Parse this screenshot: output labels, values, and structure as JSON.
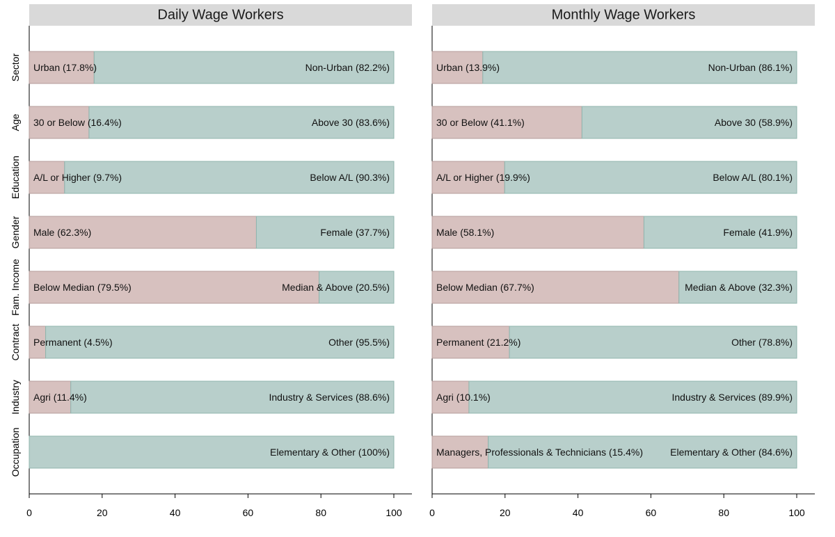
{
  "chart_data": {
    "type": "bar",
    "orientation": "horizontal",
    "stacked": true,
    "xlim": [
      0,
      100
    ],
    "xticks": [
      0,
      20,
      40,
      60,
      80,
      100
    ],
    "categories": [
      "Sector",
      "Age",
      "Education",
      "Gender",
      "Fam. Income",
      "Contract",
      "Industry",
      "Occupation"
    ],
    "colors": {
      "group_a": "#d7c1bf",
      "group_b": "#b8cfcb"
    },
    "panels": [
      {
        "title": "Daily Wage Workers",
        "rows": [
          {
            "category": "Sector",
            "a_value": 17.8,
            "a_label": "Urban (17.8%)",
            "b_value": 82.2,
            "b_label": "Non-Urban (82.2%)"
          },
          {
            "category": "Age",
            "a_value": 16.4,
            "a_label": "30 or Below (16.4%)",
            "b_value": 83.6,
            "b_label": "Above 30 (83.6%)"
          },
          {
            "category": "Education",
            "a_value": 9.7,
            "a_label": "A/L or Higher (9.7%)",
            "b_value": 90.3,
            "b_label": "Below A/L (90.3%)"
          },
          {
            "category": "Gender",
            "a_value": 62.3,
            "a_label": "Male (62.3%)",
            "b_value": 37.7,
            "b_label": "Female (37.7%)"
          },
          {
            "category": "Fam. Income",
            "a_value": 79.5,
            "a_label": "Below Median (79.5%)",
            "b_value": 20.5,
            "b_label": "Median & Above (20.5%)"
          },
          {
            "category": "Contract",
            "a_value": 4.5,
            "a_label": "Permanent (4.5%)",
            "b_value": 95.5,
            "b_label": "Other (95.5%)"
          },
          {
            "category": "Industry",
            "a_value": 11.4,
            "a_label": "Agri (11.4%)",
            "b_value": 88.6,
            "b_label": "Industry & Services (88.6%)"
          },
          {
            "category": "Occupation",
            "a_value": 0,
            "a_label": "",
            "b_value": 100,
            "b_label": "Elementary & Other (100%)"
          }
        ]
      },
      {
        "title": "Monthly Wage Workers",
        "rows": [
          {
            "category": "Sector",
            "a_value": 13.9,
            "a_label": "Urban (13.9%)",
            "b_value": 86.1,
            "b_label": "Non-Urban (86.1%)"
          },
          {
            "category": "Age",
            "a_value": 41.1,
            "a_label": "30 or Below (41.1%)",
            "b_value": 58.9,
            "b_label": "Above 30 (58.9%)"
          },
          {
            "category": "Education",
            "a_value": 19.9,
            "a_label": "A/L or Higher (19.9%)",
            "b_value": 80.1,
            "b_label": "Below A/L (80.1%)"
          },
          {
            "category": "Gender",
            "a_value": 58.1,
            "a_label": "Male (58.1%)",
            "b_value": 41.9,
            "b_label": "Female (41.9%)"
          },
          {
            "category": "Fam. Income",
            "a_value": 67.7,
            "a_label": "Below Median (67.7%)",
            "b_value": 32.3,
            "b_label": "Median & Above (32.3%)"
          },
          {
            "category": "Contract",
            "a_value": 21.2,
            "a_label": "Permanent (21.2%)",
            "b_value": 78.8,
            "b_label": "Other (78.8%)"
          },
          {
            "category": "Industry",
            "a_value": 10.1,
            "a_label": "Agri (10.1%)",
            "b_value": 89.9,
            "b_label": "Industry & Services (89.9%)"
          },
          {
            "category": "Occupation",
            "a_value": 15.4,
            "a_label": "Managers, Professionals & Technicians (15.4%)",
            "b_value": 84.6,
            "b_label": "Elementary & Other (84.6%)"
          }
        ]
      }
    ]
  }
}
